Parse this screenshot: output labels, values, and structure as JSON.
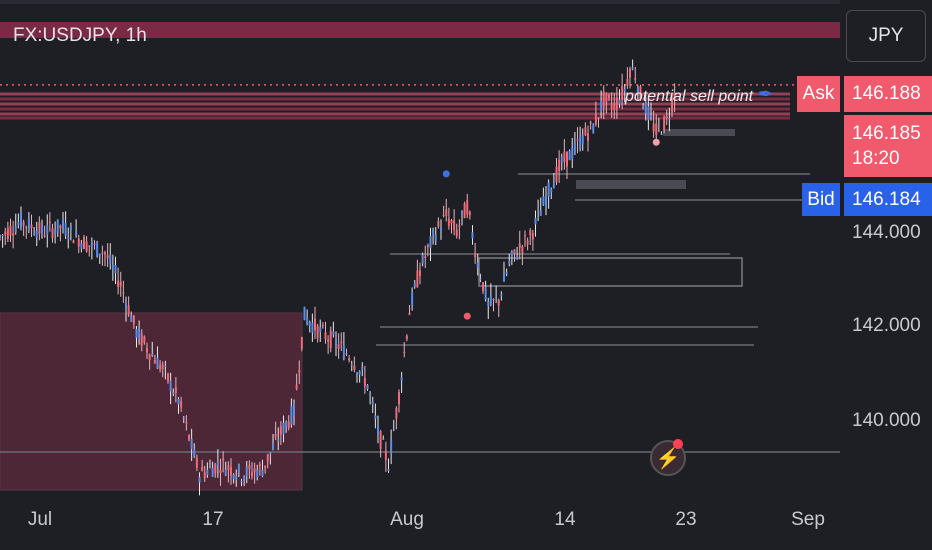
{
  "header": {
    "symbol": "FX:USDJPY, 1h",
    "currency": "JPY"
  },
  "annotation": {
    "text": "potential sell point"
  },
  "price_tags": {
    "ask_label": "Ask",
    "ask_price": "146.188",
    "last_price": "146.185",
    "countdown": "18:20",
    "bid_label": "Bid",
    "bid_price": "146.184"
  },
  "colors": {
    "background": "#1e1e25",
    "bear": "#f05a6c",
    "bull": "#2962e8",
    "zone": "#5a2a3c"
  },
  "icons": {
    "pencil": "pencil-icon",
    "alert": "lightning-alert-icon"
  },
  "chart_data": {
    "type": "candlestick",
    "symbol": "FX:USDJPY",
    "interval": "1h",
    "y_ticks": [
      "144.000",
      "142.000",
      "140.000"
    ],
    "x_ticks": [
      "Jul",
      "17",
      "Aug",
      "14",
      "23",
      "Sep"
    ],
    "ylim": [
      138.5,
      147.8
    ],
    "ask": 146.188,
    "last": 146.185,
    "bid": 146.184,
    "path": [
      {
        "t": 0,
        "p": 143.3
      },
      {
        "t": 4,
        "p": 143.6
      },
      {
        "t": 8,
        "p": 143.4
      },
      {
        "t": 12,
        "p": 143.5
      },
      {
        "t": 16,
        "p": 143.2
      },
      {
        "t": 20,
        "p": 143.0
      },
      {
        "t": 23,
        "p": 142.4
      },
      {
        "t": 26,
        "p": 141.5
      },
      {
        "t": 28,
        "p": 141.2
      },
      {
        "t": 31,
        "p": 140.8
      },
      {
        "t": 34,
        "p": 140.2
      },
      {
        "t": 36,
        "p": 139.5
      },
      {
        "t": 38,
        "p": 138.8
      },
      {
        "t": 42,
        "p": 139.0
      },
      {
        "t": 46,
        "p": 138.8
      },
      {
        "t": 50,
        "p": 138.9
      },
      {
        "t": 53,
        "p": 139.5
      },
      {
        "t": 56,
        "p": 140.0
      },
      {
        "t": 58,
        "p": 141.8
      },
      {
        "t": 61,
        "p": 141.5
      },
      {
        "t": 64,
        "p": 141.3
      },
      {
        "t": 67,
        "p": 141.0
      },
      {
        "t": 70,
        "p": 140.5
      },
      {
        "t": 72,
        "p": 139.6
      },
      {
        "t": 74,
        "p": 139.0
      },
      {
        "t": 76,
        "p": 140.3
      },
      {
        "t": 78,
        "p": 141.9
      },
      {
        "t": 80,
        "p": 142.7
      },
      {
        "t": 83,
        "p": 143.4
      },
      {
        "t": 85,
        "p": 143.7
      },
      {
        "t": 87,
        "p": 143.4
      },
      {
        "t": 89,
        "p": 143.9
      },
      {
        "t": 91,
        "p": 142.8
      },
      {
        "t": 93,
        "p": 142.0
      },
      {
        "t": 95,
        "p": 142.1
      },
      {
        "t": 97,
        "p": 142.8
      },
      {
        "t": 99,
        "p": 143.1
      },
      {
        "t": 101,
        "p": 143.3
      },
      {
        "t": 103,
        "p": 143.8
      },
      {
        "t": 105,
        "p": 144.3
      },
      {
        "t": 107,
        "p": 144.7
      },
      {
        "t": 109,
        "p": 144.9
      },
      {
        "t": 111,
        "p": 145.2
      },
      {
        "t": 113,
        "p": 145.4
      },
      {
        "t": 115,
        "p": 145.9
      },
      {
        "t": 117,
        "p": 145.8
      },
      {
        "t": 119,
        "p": 146.1
      },
      {
        "t": 120,
        "p": 146.5
      },
      {
        "t": 121,
        "p": 146.4
      },
      {
        "t": 122,
        "p": 146.0
      },
      {
        "t": 124,
        "p": 145.5
      },
      {
        "t": 125,
        "p": 145.3
      },
      {
        "t": 127,
        "p": 145.5
      },
      {
        "t": 129,
        "p": 146.185
      }
    ],
    "x_domain": [
      0,
      160
    ],
    "x_tick_positions": [
      5,
      39,
      75,
      103,
      119,
      144
    ],
    "markers": [
      {
        "t": 85,
        "p": 144.5,
        "color": "#3b73e6"
      },
      {
        "t": 89,
        "p": 141.8,
        "color": "#f05a6c"
      },
      {
        "t": 125,
        "p": 145.1,
        "color": "#f0a0a8"
      }
    ],
    "horizontal_levels": [
      146.6,
      146.45,
      146.3,
      146.188,
      145.3,
      144.05,
      141.5,
      139.4
    ]
  }
}
